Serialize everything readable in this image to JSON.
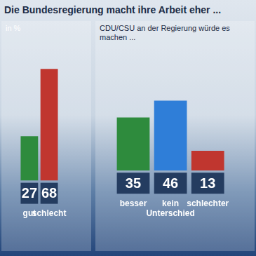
{
  "chart_data": [
    {
      "type": "bar",
      "title": "Die Bundesregierung macht ihre Arbeit eher ...",
      "subtitle": "in %",
      "categories": [
        "gut",
        "schlecht"
      ],
      "values": [
        27,
        68
      ],
      "colors": [
        "#2e8b3d",
        "#c0362f"
      ],
      "ylim": [
        0,
        80
      ],
      "grid": false,
      "tick_labels": "x",
      "data_labels": true
    },
    {
      "type": "bar",
      "subtitle": "CDU/CSU an der Regierung würde es machen ...",
      "categories": [
        "besser",
        "kein Unterschied",
        "schlechter"
      ],
      "values": [
        35,
        46,
        13
      ],
      "colors": [
        "#2e8b3d",
        "#2f7ed8",
        "#c0362f"
      ],
      "ylim": [
        0,
        80
      ],
      "grid": false,
      "tick_labels": "x",
      "data_labels": true
    }
  ]
}
